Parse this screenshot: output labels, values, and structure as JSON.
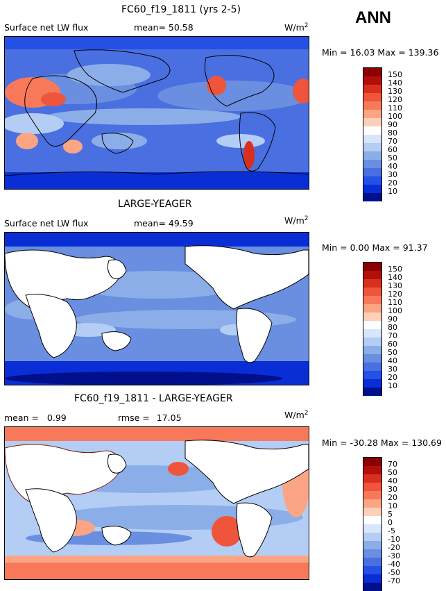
{
  "season": "ANN",
  "units": "W/m",
  "units_sup": "2",
  "panels": [
    {
      "title": "FC60_f19_1811 (yrs 2-5)",
      "left_label": "Surface net LW flux",
      "stat_label": "mean=",
      "stat_value": "50.58",
      "min_label": "Min =",
      "min_value": "16.03",
      "max_label": "Max =",
      "max_value": "139.36",
      "colorbar_levels": [
        "150",
        "140",
        "130",
        "120",
        "110",
        "100",
        "90",
        "80",
        "70",
        "60",
        "50",
        "40",
        "30",
        "20",
        "10"
      ]
    },
    {
      "title": "LARGE-YEAGER",
      "left_label": "Surface net LW flux",
      "stat_label": "mean=",
      "stat_value": "49.59",
      "min_label": "Min =",
      "min_value": "0.00",
      "max_label": "Max =",
      "max_value": "91.37",
      "colorbar_levels": [
        "150",
        "140",
        "130",
        "120",
        "110",
        "100",
        "90",
        "80",
        "70",
        "60",
        "50",
        "40",
        "30",
        "20",
        "10"
      ]
    },
    {
      "title": "FC60_f19_1811 - LARGE-YEAGER",
      "mean_label": "mean =",
      "mean_value": "0.99",
      "rmse_label": "rmse =",
      "rmse_value": "17.05",
      "min_label": "Min =",
      "min_value": "-30.28",
      "max_label": "Max =",
      "max_value": "130.69",
      "colorbar_levels": [
        "70",
        "50",
        "40",
        "30",
        "20",
        "10",
        "5",
        "0",
        "-5",
        "-10",
        "-20",
        "-30",
        "-40",
        "-50",
        "-70"
      ]
    }
  ],
  "colors": {
    "abs_scale": [
      "#8b0000",
      "#b30f0a",
      "#d7301f",
      "#ef553a",
      "#f7795a",
      "#fba585",
      "#fdd0b8",
      "#ffffff",
      "#d7e6fa",
      "#b3cdf5",
      "#8caee8",
      "#6a8ee0",
      "#4a6fe0",
      "#2450e6",
      "#0a2ed6",
      "#00108c"
    ],
    "diff_scale": [
      "#8b0000",
      "#b30f0a",
      "#d7301f",
      "#ef553a",
      "#f7795a",
      "#fba585",
      "#fdd0b8",
      "#ffffff",
      "#d7e6fa",
      "#b3cdf5",
      "#8caee8",
      "#6a8ee0",
      "#4a6fe0",
      "#2450e6",
      "#0a2ed6",
      "#00108c"
    ]
  }
}
